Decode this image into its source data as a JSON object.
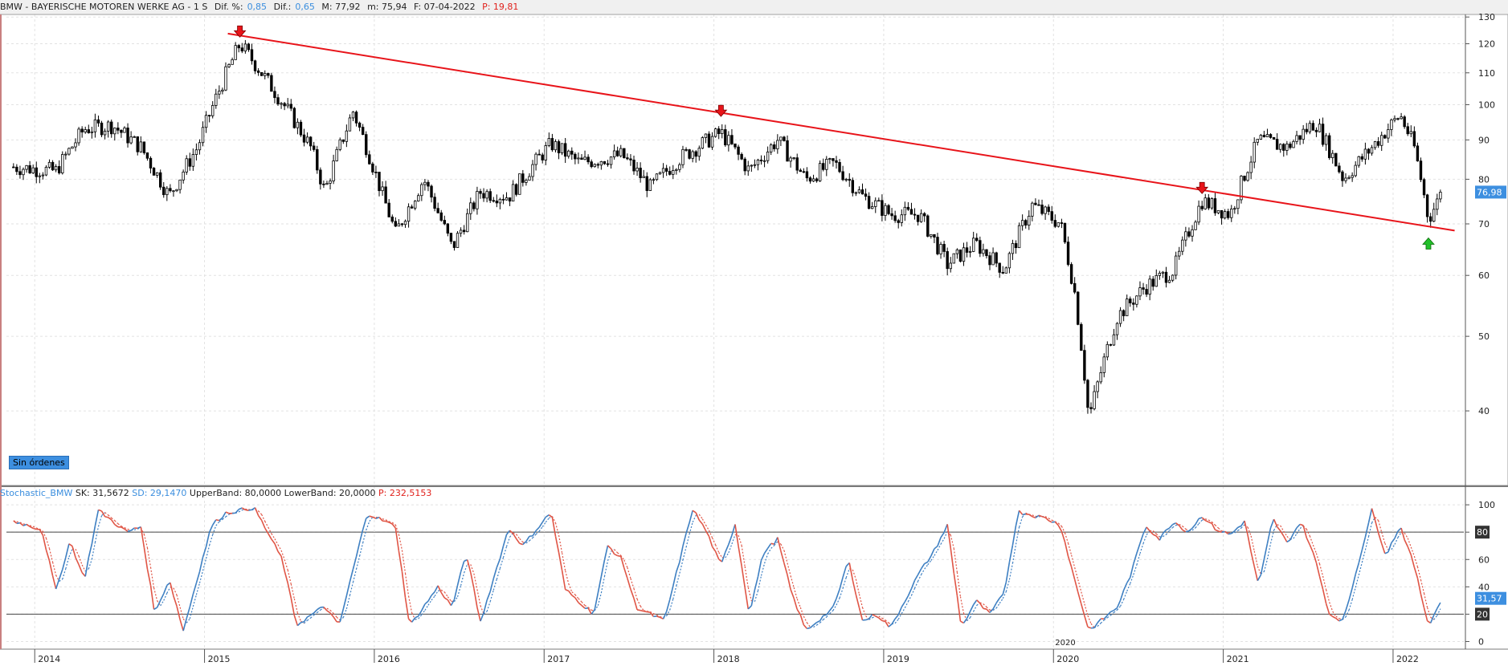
{
  "header": {
    "symbol_label": "BMW - BAYERISCHE MOTOREN WERKE AG -  1 S",
    "dif_pct_label": "Dif. %:",
    "dif_pct_value": "0,85",
    "dif_label": "Dif.:",
    "dif_value": "0,65",
    "max_label": "M: 77,92",
    "min_label": "m: 75,94",
    "date_label": "F: 07-04-2022",
    "p_label": "P: 19,81"
  },
  "orders_badge": "Sin órdenes",
  "price_tag": "76,98",
  "indicator_header": {
    "name": "Stochastic_BMW",
    "sk": "SK: 31,5672",
    "sd": "SD: 29,1470",
    "upper": "UpperBand: 80,0000",
    "lower": "LowerBand: 20,0000",
    "p": "P: 232,5153"
  },
  "stoch_tags": {
    "upper": "80",
    "lower": "20",
    "value": "31,57"
  },
  "x_axis": {
    "years": [
      "2014",
      "2015",
      "2016",
      "2017",
      "2018",
      "2019",
      "2020",
      "2021",
      "2022"
    ],
    "extra_label": "2020"
  },
  "colors": {
    "up_line": "#3d7fc2",
    "down_line": "#e05545",
    "trendline": "#e8141a",
    "arrow_down": "#e8141a",
    "arrow_up": "#22c02a"
  },
  "chart_data": [
    {
      "type": "candlestick",
      "title": "BMW - BAYERISCHE MOTOREN WERKE AG - 1 S",
      "y_scale": "log",
      "ylim": [
        32,
        131
      ],
      "y_ticks": [
        130,
        120,
        110,
        100,
        90,
        80,
        70,
        60,
        50,
        40
      ],
      "x_range": [
        "2013-11",
        "2022-05"
      ],
      "weekly_close_anchors": [
        [
          "2013-11",
          83
        ],
        [
          "2014-02",
          82
        ],
        [
          "2014-04",
          93
        ],
        [
          "2014-06",
          94
        ],
        [
          "2014-08",
          88
        ],
        [
          "2014-10",
          76
        ],
        [
          "2014-12",
          88
        ],
        [
          "2015-03",
          120
        ],
        [
          "2015-05",
          107
        ],
        [
          "2015-08",
          88
        ],
        [
          "2015-09",
          77
        ],
        [
          "2015-11",
          98
        ],
        [
          "2016-01",
          77
        ],
        [
          "2016-02",
          68
        ],
        [
          "2016-04",
          80
        ],
        [
          "2016-06",
          65
        ],
        [
          "2016-08",
          77
        ],
        [
          "2016-10",
          76
        ],
        [
          "2017-01",
          89
        ],
        [
          "2017-03",
          84
        ],
        [
          "2017-06",
          86
        ],
        [
          "2017-08",
          78
        ],
        [
          "2017-10",
          85
        ],
        [
          "2018-01",
          92
        ],
        [
          "2018-03",
          82
        ],
        [
          "2018-05",
          90
        ],
        [
          "2018-07",
          80
        ],
        [
          "2018-09",
          84
        ],
        [
          "2018-11",
          76
        ],
        [
          "2019-01",
          72
        ],
        [
          "2019-03",
          72
        ],
        [
          "2019-05",
          62
        ],
        [
          "2019-07",
          66
        ],
        [
          "2019-09",
          61
        ],
        [
          "2019-11",
          74
        ],
        [
          "2020-01",
          70
        ],
        [
          "2020-02",
          57
        ],
        [
          "2020-03",
          39
        ],
        [
          "2020-05",
          53
        ],
        [
          "2020-07",
          58
        ],
        [
          "2020-09",
          61
        ],
        [
          "2020-11",
          75
        ],
        [
          "2021-01",
          72
        ],
        [
          "2021-03",
          90
        ],
        [
          "2021-05",
          88
        ],
        [
          "2021-07",
          95
        ],
        [
          "2021-09",
          80
        ],
        [
          "2021-11",
          88
        ],
        [
          "2022-01",
          97
        ],
        [
          "2022-02",
          88
        ],
        [
          "2022-03",
          71
        ],
        [
          "2022-04",
          77
        ]
      ],
      "trendline": {
        "from": [
          "2015-03",
          123
        ],
        "to": [
          "2022-04",
          69
        ]
      },
      "markers": [
        {
          "kind": "down-arrow",
          "date": "2015-03",
          "value": 123
        },
        {
          "kind": "down-arrow",
          "date": "2018-01",
          "value": 97
        },
        {
          "kind": "down-arrow",
          "date": "2020-11",
          "value": 77
        },
        {
          "kind": "up-arrow",
          "date": "2022-03",
          "value": 66
        }
      ],
      "last": 76.98
    },
    {
      "type": "line",
      "title": "Stochastic_BMW",
      "ylim": [
        -5,
        103
      ],
      "y_ticks": [
        100,
        80,
        60,
        40,
        20,
        0
      ],
      "bands": [
        80,
        20
      ],
      "sk_anchors": [
        [
          "2013-11",
          88
        ],
        [
          "2014-01",
          82
        ],
        [
          "2014-02",
          37
        ],
        [
          "2014-03",
          74
        ],
        [
          "2014-04",
          45
        ],
        [
          "2014-05",
          96
        ],
        [
          "2014-07",
          80
        ],
        [
          "2014-08",
          84
        ],
        [
          "2014-09",
          20
        ],
        [
          "2014-10",
          46
        ],
        [
          "2014-11",
          8
        ],
        [
          "2015-01",
          85
        ],
        [
          "2015-02",
          94
        ],
        [
          "2015-04",
          98
        ],
        [
          "2015-06",
          60
        ],
        [
          "2015-07",
          12
        ],
        [
          "2015-09",
          26
        ],
        [
          "2015-10",
          11
        ],
        [
          "2015-12",
          94
        ],
        [
          "2016-02",
          84
        ],
        [
          "2016-03",
          11
        ],
        [
          "2016-05",
          40
        ],
        [
          "2016-06",
          25
        ],
        [
          "2016-07",
          65
        ],
        [
          "2016-08",
          14
        ],
        [
          "2016-10",
          83
        ],
        [
          "2016-11",
          70
        ],
        [
          "2017-01",
          95
        ],
        [
          "2017-02",
          38
        ],
        [
          "2017-04",
          20
        ],
        [
          "2017-05",
          70
        ],
        [
          "2017-06",
          60
        ],
        [
          "2017-07",
          25
        ],
        [
          "2017-09",
          15
        ],
        [
          "2017-11",
          97
        ],
        [
          "2017-12",
          80
        ],
        [
          "2018-01",
          55
        ],
        [
          "2018-02",
          86
        ],
        [
          "2018-03",
          20
        ],
        [
          "2018-04",
          65
        ],
        [
          "2018-05",
          75
        ],
        [
          "2018-06",
          35
        ],
        [
          "2018-07",
          8
        ],
        [
          "2018-09",
          25
        ],
        [
          "2018-10",
          60
        ],
        [
          "2018-11",
          15
        ],
        [
          "2018-12",
          20
        ],
        [
          "2019-01",
          10
        ],
        [
          "2019-03",
          50
        ],
        [
          "2019-04",
          65
        ],
        [
          "2019-05",
          85
        ],
        [
          "2019-06",
          10
        ],
        [
          "2019-07",
          30
        ],
        [
          "2019-08",
          20
        ],
        [
          "2019-09",
          35
        ],
        [
          "2019-10",
          95
        ],
        [
          "2019-12",
          90
        ],
        [
          "2020-01",
          85
        ],
        [
          "2020-02",
          45
        ],
        [
          "2020-03",
          8
        ],
        [
          "2020-05",
          25
        ],
        [
          "2020-06",
          50
        ],
        [
          "2020-07",
          85
        ],
        [
          "2020-08",
          75
        ],
        [
          "2020-09",
          88
        ],
        [
          "2020-10",
          80
        ],
        [
          "2020-11",
          92
        ],
        [
          "2020-12",
          82
        ],
        [
          "2021-01",
          78
        ],
        [
          "2021-02",
          88
        ],
        [
          "2021-03",
          40
        ],
        [
          "2021-04",
          90
        ],
        [
          "2021-05",
          72
        ],
        [
          "2021-06",
          88
        ],
        [
          "2021-07",
          60
        ],
        [
          "2021-08",
          20
        ],
        [
          "2021-09",
          15
        ],
        [
          "2021-11",
          96
        ],
        [
          "2021-12",
          63
        ],
        [
          "2022-01",
          85
        ],
        [
          "2022-02",
          55
        ],
        [
          "2022-03",
          12
        ],
        [
          "2022-04",
          31.57
        ]
      ],
      "sd_lag_weeks": 1,
      "sk_last": 31.5672,
      "sd_last": 29.147
    }
  ]
}
